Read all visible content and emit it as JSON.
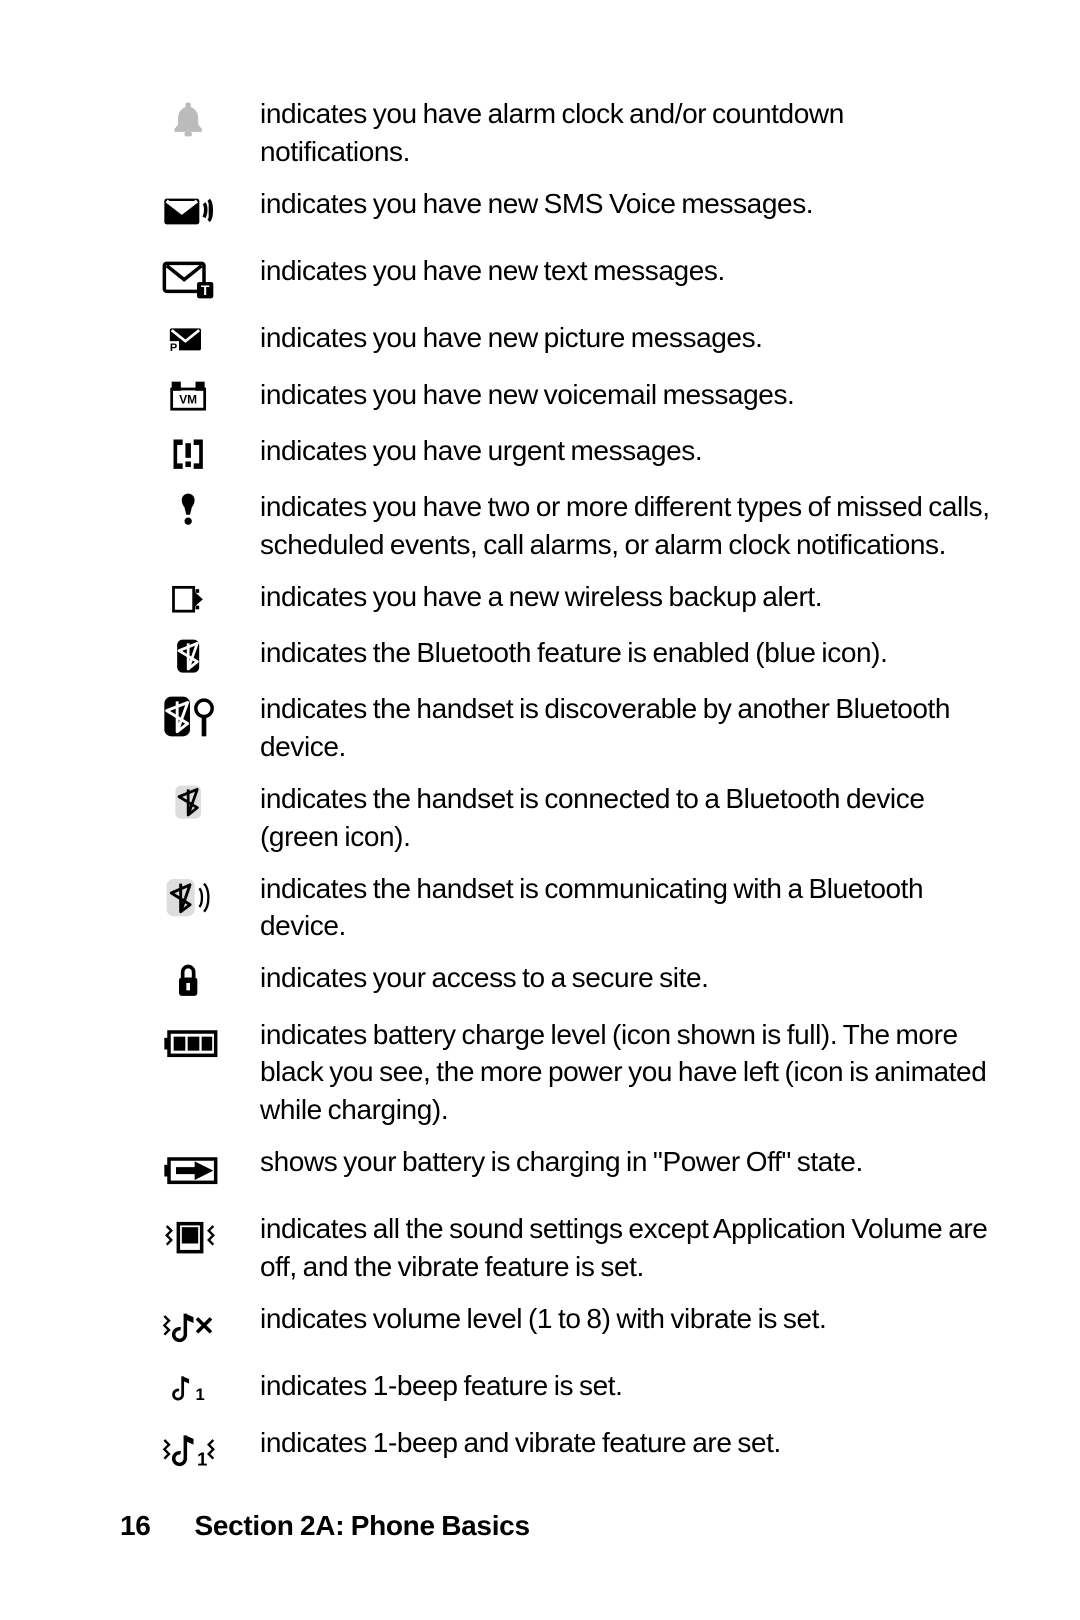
{
  "page_number": "16",
  "section_label": "Section 2A: Phone Basics",
  "items": [
    {
      "icon": "alarm-bell-icon",
      "desc": "indicates you have alarm clock and/or countdown notifications."
    },
    {
      "icon": "sms-voice-icon",
      "desc": "indicates you have new SMS Voice messages."
    },
    {
      "icon": "new-text-icon",
      "desc": "indicates you have new text messages."
    },
    {
      "icon": "new-picture-msg-icon",
      "desc": "indicates you have new picture messages."
    },
    {
      "icon": "voicemail-icon",
      "desc": "indicates you have new voicemail messages."
    },
    {
      "icon": "urgent-icon",
      "desc": "indicates you have urgent messages."
    },
    {
      "icon": "multi-notify-icon",
      "desc": "indicates you have two or more different types of missed calls, scheduled events, call alarms, or alarm clock notifications."
    },
    {
      "icon": "wireless-backup-icon",
      "desc": "indicates you have a new wireless backup alert."
    },
    {
      "icon": "bluetooth-enabled-icon",
      "desc": "indicates the Bluetooth feature is enabled (blue icon)."
    },
    {
      "icon": "bluetooth-discover-icon",
      "desc": "indicates the handset is discoverable by another Bluetooth device."
    },
    {
      "icon": "bluetooth-connected-icon",
      "desc": "indicates the handset is connected to a Bluetooth device (green icon)."
    },
    {
      "icon": "bluetooth-comm-icon",
      "desc": "indicates the handset is communicating with a Bluetooth device."
    },
    {
      "icon": "secure-site-icon",
      "desc": "indicates your access to a secure site."
    },
    {
      "icon": "battery-icon",
      "desc": "indicates battery charge level (icon shown is full). The more black you see, the more power you have left (icon is animated while charging)."
    },
    {
      "icon": "charging-off-icon",
      "desc": "shows your battery is charging in \"Power Off\" state."
    },
    {
      "icon": "vibrate-mute-icon",
      "desc": "indicates all the sound settings except Application Volume are off, and the vibrate feature is set."
    },
    {
      "icon": "volume-vibrate-icon",
      "desc": "indicates volume level (1 to 8) with vibrate is set."
    },
    {
      "icon": "one-beep-icon",
      "desc": "indicates 1-beep feature is set."
    },
    {
      "icon": "one-beep-vibrate-icon",
      "desc": "indicates 1-beep and vibrate feature are set."
    }
  ]
}
